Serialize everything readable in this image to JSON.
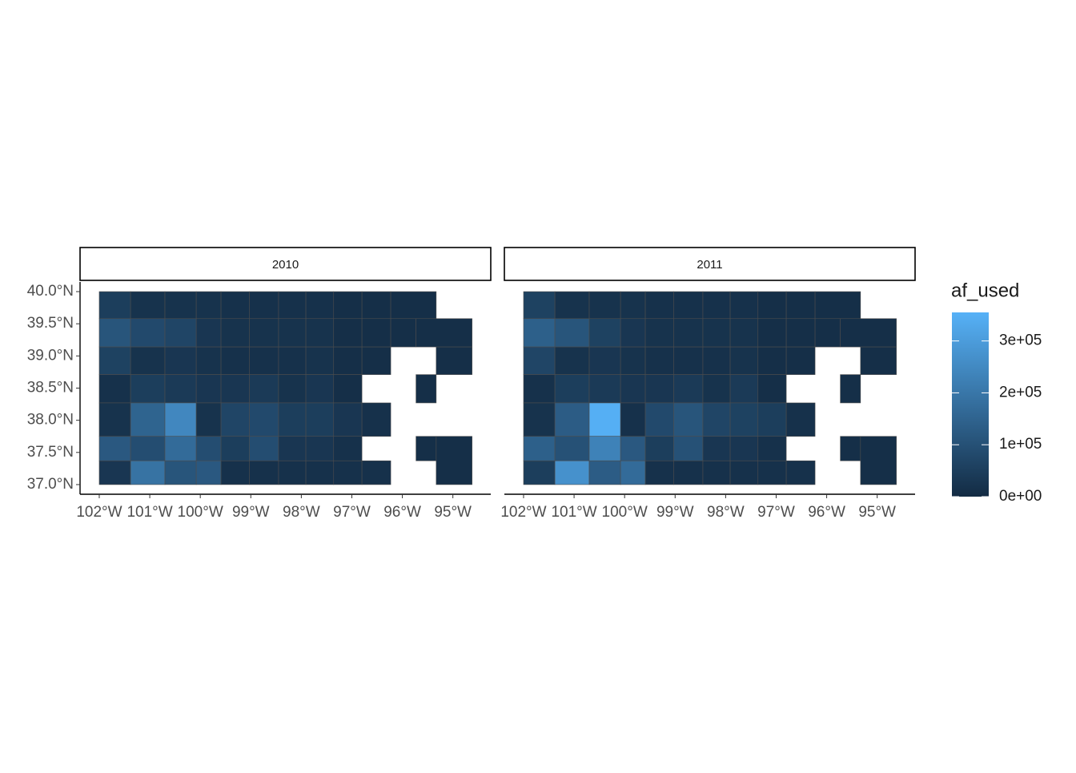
{
  "chart_data": {
    "type": "choropleth",
    "xlim": [
      -102.38,
      -94.25
    ],
    "ylim": [
      36.85,
      40.15
    ],
    "xticks": [
      {
        "value": -102,
        "label": "102°W"
      },
      {
        "value": -101,
        "label": "101°W"
      },
      {
        "value": -100,
        "label": "100°W"
      },
      {
        "value": -99,
        "label": "99°W"
      },
      {
        "value": -98,
        "label": "98°W"
      },
      {
        "value": -97,
        "label": "97°W"
      },
      {
        "value": -96,
        "label": "96°W"
      },
      {
        "value": -95,
        "label": "95°W"
      }
    ],
    "yticks": [
      {
        "value": 37.0,
        "label": "37.0°N"
      },
      {
        "value": 37.5,
        "label": "37.5°N"
      },
      {
        "value": 38.0,
        "label": "38.0°N"
      },
      {
        "value": 38.5,
        "label": "38.5°N"
      },
      {
        "value": 39.0,
        "label": "39.0°N"
      },
      {
        "value": 39.5,
        "label": "39.5°N"
      },
      {
        "value": 40.0,
        "label": "40.0°N"
      }
    ],
    "legend_title": "af_used",
    "colorscale": {
      "low": "#132B43",
      "high": "#56B1F7",
      "limits": [
        0,
        355000
      ],
      "ticks": [
        {
          "value": 0,
          "label": "0e+00"
        },
        {
          "value": 100000,
          "label": "1e+05"
        },
        {
          "value": 200000,
          "label": "2e+05"
        },
        {
          "value": 300000,
          "label": "3e+05"
        }
      ]
    },
    "regions": [
      {
        "lon": [
          -102,
          -101.38
        ],
        "lat": [
          39.58,
          40.0
        ]
      },
      {
        "lon": [
          -101.38,
          -100.7
        ],
        "lat": [
          39.58,
          40.0
        ]
      },
      {
        "lon": [
          -100.7,
          -100.08
        ],
        "lat": [
          39.58,
          40.0
        ]
      },
      {
        "lon": [
          -100.08,
          -99.59
        ],
        "lat": [
          39.58,
          40.0
        ]
      },
      {
        "lon": [
          -99.59,
          -99.03
        ],
        "lat": [
          39.58,
          40.0
        ]
      },
      {
        "lon": [
          -99.03,
          -98.45
        ],
        "lat": [
          39.58,
          40.0
        ]
      },
      {
        "lon": [
          -98.45,
          -97.91
        ],
        "lat": [
          39.58,
          40.0
        ]
      },
      {
        "lon": [
          -97.91,
          -97.36
        ],
        "lat": [
          39.58,
          40.0
        ]
      },
      {
        "lon": [
          -97.36,
          -96.8
        ],
        "lat": [
          39.58,
          40.0
        ]
      },
      {
        "lon": [
          -96.8,
          -96.23
        ],
        "lat": [
          39.58,
          40.0
        ]
      },
      {
        "lon": [
          -96.23,
          -95.33
        ],
        "lat": [
          39.58,
          40.0
        ]
      },
      {
        "lon": [
          -102,
          -101.38
        ],
        "lat": [
          39.14,
          39.58
        ]
      },
      {
        "lon": [
          -101.38,
          -100.7
        ],
        "lat": [
          39.14,
          39.58
        ]
      },
      {
        "lon": [
          -100.7,
          -100.08
        ],
        "lat": [
          39.14,
          39.58
        ]
      },
      {
        "lon": [
          -100.08,
          -99.59
        ],
        "lat": [
          39.14,
          39.58
        ]
      },
      {
        "lon": [
          -99.59,
          -99.03
        ],
        "lat": [
          39.14,
          39.58
        ]
      },
      {
        "lon": [
          -99.03,
          -98.45
        ],
        "lat": [
          39.14,
          39.58
        ]
      },
      {
        "lon": [
          -98.45,
          -97.91
        ],
        "lat": [
          39.14,
          39.58
        ]
      },
      {
        "lon": [
          -97.91,
          -97.36
        ],
        "lat": [
          39.14,
          39.58
        ]
      },
      {
        "lon": [
          -97.36,
          -96.8
        ],
        "lat": [
          39.14,
          39.58
        ]
      },
      {
        "lon": [
          -96.8,
          -96.23
        ],
        "lat": [
          39.14,
          39.58
        ]
      },
      {
        "lon": [
          -96.23,
          -95.73
        ],
        "lat": [
          39.14,
          39.58
        ]
      },
      {
        "lon": [
          -95.73,
          -94.62
        ],
        "lat": [
          39.14,
          39.58
        ]
      },
      {
        "lon": [
          -102,
          -101.38
        ],
        "lat": [
          38.71,
          39.14
        ]
      },
      {
        "lon": [
          -101.38,
          -100.7
        ],
        "lat": [
          38.71,
          39.14
        ]
      },
      {
        "lon": [
          -100.7,
          -100.08
        ],
        "lat": [
          38.71,
          39.14
        ]
      },
      {
        "lon": [
          -100.08,
          -99.59
        ],
        "lat": [
          38.71,
          39.14
        ]
      },
      {
        "lon": [
          -99.59,
          -99.03
        ],
        "lat": [
          38.71,
          39.14
        ]
      },
      {
        "lon": [
          -99.03,
          -98.45
        ],
        "lat": [
          38.71,
          39.14
        ]
      },
      {
        "lon": [
          -98.45,
          -97.91
        ],
        "lat": [
          38.71,
          39.14
        ]
      },
      {
        "lon": [
          -97.91,
          -97.36
        ],
        "lat": [
          38.71,
          39.14
        ]
      },
      {
        "lon": [
          -97.36,
          -96.8
        ],
        "lat": [
          38.71,
          39.14
        ]
      },
      {
        "lon": [
          -96.8,
          -96.23
        ],
        "lat": [
          38.71,
          39.14
        ]
      },
      {
        "lon": [
          -95.33,
          -94.62
        ],
        "lat": [
          38.71,
          39.14
        ]
      },
      {
        "lon": [
          -102,
          -101.38
        ],
        "lat": [
          38.27,
          38.71
        ]
      },
      {
        "lon": [
          -101.38,
          -100.7
        ],
        "lat": [
          38.27,
          38.71
        ]
      },
      {
        "lon": [
          -100.7,
          -100.08
        ],
        "lat": [
          38.27,
          38.71
        ]
      },
      {
        "lon": [
          -100.08,
          -99.59
        ],
        "lat": [
          38.27,
          38.71
        ]
      },
      {
        "lon": [
          -99.59,
          -99.03
        ],
        "lat": [
          38.27,
          38.71
        ]
      },
      {
        "lon": [
          -99.03,
          -98.45
        ],
        "lat": [
          38.27,
          38.71
        ]
      },
      {
        "lon": [
          -98.45,
          -97.91
        ],
        "lat": [
          38.27,
          38.71
        ]
      },
      {
        "lon": [
          -97.91,
          -97.36
        ],
        "lat": [
          38.27,
          38.71
        ]
      },
      {
        "lon": [
          -97.36,
          -96.8
        ],
        "lat": [
          38.27,
          38.71
        ]
      },
      {
        "lon": [
          -95.73,
          -95.33
        ],
        "lat": [
          38.27,
          38.71
        ]
      },
      {
        "lon": [
          -102,
          -101.38
        ],
        "lat": [
          37.75,
          38.27
        ]
      },
      {
        "lon": [
          -101.38,
          -100.7
        ],
        "lat": [
          37.75,
          38.27
        ]
      },
      {
        "lon": [
          -100.7,
          -100.08
        ],
        "lat": [
          37.75,
          38.27
        ]
      },
      {
        "lon": [
          -100.08,
          -99.59
        ],
        "lat": [
          37.75,
          38.27
        ]
      },
      {
        "lon": [
          -99.59,
          -99.03
        ],
        "lat": [
          37.75,
          38.27
        ]
      },
      {
        "lon": [
          -99.03,
          -98.45
        ],
        "lat": [
          37.75,
          38.27
        ]
      },
      {
        "lon": [
          -98.45,
          -97.91
        ],
        "lat": [
          37.75,
          38.27
        ]
      },
      {
        "lon": [
          -97.91,
          -97.36
        ],
        "lat": [
          37.75,
          38.27
        ]
      },
      {
        "lon": [
          -97.36,
          -96.8
        ],
        "lat": [
          37.75,
          38.27
        ]
      },
      {
        "lon": [
          -96.8,
          -96.23
        ],
        "lat": [
          37.75,
          38.27
        ]
      },
      {
        "lon": [
          -102,
          -101.38
        ],
        "lat": [
          37.37,
          37.75
        ]
      },
      {
        "lon": [
          -101.38,
          -100.7
        ],
        "lat": [
          37.37,
          37.75
        ]
      },
      {
        "lon": [
          -100.7,
          -100.08
        ],
        "lat": [
          37.37,
          37.75
        ]
      },
      {
        "lon": [
          -100.08,
          -99.59
        ],
        "lat": [
          37.37,
          37.75
        ]
      },
      {
        "lon": [
          -99.59,
          -99.03
        ],
        "lat": [
          37.37,
          37.75
        ]
      },
      {
        "lon": [
          -99.03,
          -98.45
        ],
        "lat": [
          37.37,
          37.75
        ]
      },
      {
        "lon": [
          -98.45,
          -97.91
        ],
        "lat": [
          37.37,
          37.75
        ]
      },
      {
        "lon": [
          -97.91,
          -97.36
        ],
        "lat": [
          37.37,
          37.75
        ]
      },
      {
        "lon": [
          -97.36,
          -96.8
        ],
        "lat": [
          37.37,
          37.75
        ]
      },
      {
        "lon": [
          -95.73,
          -95.33
        ],
        "lat": [
          37.37,
          37.75
        ]
      },
      {
        "lon": [
          -95.33,
          -94.62
        ],
        "lat": [
          37.0,
          37.75
        ]
      },
      {
        "lon": [
          -102,
          -101.38
        ],
        "lat": [
          37.0,
          37.37
        ]
      },
      {
        "lon": [
          -101.38,
          -100.7
        ],
        "lat": [
          37.0,
          37.37
        ]
      },
      {
        "lon": [
          -100.7,
          -100.08
        ],
        "lat": [
          37.0,
          37.37
        ]
      },
      {
        "lon": [
          -100.08,
          -99.59
        ],
        "lat": [
          37.0,
          37.37
        ]
      },
      {
        "lon": [
          -99.59,
          -99.03
        ],
        "lat": [
          37.0,
          37.37
        ]
      },
      {
        "lon": [
          -99.03,
          -98.45
        ],
        "lat": [
          37.0,
          37.37
        ]
      },
      {
        "lon": [
          -98.45,
          -97.91
        ],
        "lat": [
          37.0,
          37.37
        ]
      },
      {
        "lon": [
          -97.91,
          -97.36
        ],
        "lat": [
          37.0,
          37.37
        ]
      },
      {
        "lon": [
          -97.36,
          -96.8
        ],
        "lat": [
          37.0,
          37.37
        ]
      },
      {
        "lon": [
          -96.8,
          -96.23
        ],
        "lat": [
          37.0,
          37.37
        ]
      }
    ],
    "facets": [
      {
        "title": "2010",
        "values": [
          50000,
          20000,
          20000,
          20000,
          15000,
          15000,
          15000,
          15000,
          10000,
          10000,
          10000,
          110000,
          80000,
          70000,
          30000,
          20000,
          20000,
          20000,
          20000,
          10000,
          10000,
          10000,
          10000,
          60000,
          20000,
          30000,
          20000,
          15000,
          15000,
          15000,
          20000,
          10000,
          10000,
          10000,
          15000,
          50000,
          40000,
          30000,
          30000,
          40000,
          20000,
          30000,
          10000,
          10000,
          20000,
          150000,
          245000,
          20000,
          70000,
          80000,
          50000,
          50000,
          30000,
          15000,
          120000,
          90000,
          170000,
          90000,
          50000,
          90000,
          30000,
          30000,
          15000,
          10000,
          10000,
          30000,
          190000,
          110000,
          120000,
          15000,
          15000,
          15000,
          15000,
          15000,
          15000
        ]
      },
      {
        "title": "2011",
        "values": [
          60000,
          20000,
          20000,
          20000,
          15000,
          15000,
          15000,
          15000,
          10000,
          10000,
          10000,
          140000,
          110000,
          60000,
          30000,
          20000,
          20000,
          20000,
          20000,
          10000,
          10000,
          10000,
          10000,
          70000,
          20000,
          30000,
          20000,
          15000,
          15000,
          15000,
          20000,
          10000,
          10000,
          10000,
          15000,
          50000,
          40000,
          30000,
          30000,
          40000,
          20000,
          40000,
          10000,
          10000,
          20000,
          130000,
          350000,
          15000,
          80000,
          110000,
          70000,
          60000,
          50000,
          15000,
          140000,
          100000,
          230000,
          120000,
          50000,
          100000,
          30000,
          30000,
          15000,
          10000,
          10000,
          50000,
          270000,
          130000,
          170000,
          15000,
          15000,
          15000,
          15000,
          15000,
          15000
        ]
      }
    ]
  }
}
